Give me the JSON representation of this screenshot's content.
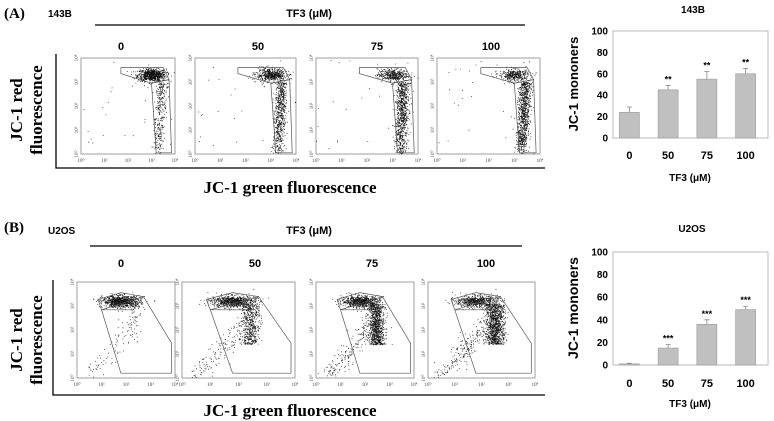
{
  "panels": [
    {
      "label": "(A)",
      "cell_line": "143B",
      "treatment_label": "TF3 (μM)",
      "doses": [
        "0",
        "50",
        "75",
        "100"
      ],
      "y_axis_label": [
        "JC-1 red",
        "fluorescence"
      ],
      "x_axis_label": "JC-1 green fluorescence",
      "axis_ticks": [
        "10⁰",
        "10¹",
        "10²",
        "10³",
        "10⁴"
      ]
    },
    {
      "label": "(B)",
      "cell_line": "U2OS",
      "treatment_label": "TF3 (μM)",
      "doses": [
        "0",
        "50",
        "75",
        "100"
      ],
      "y_axis_label": [
        "JC-1 red",
        "fluorescence"
      ],
      "x_axis_label": "JC-1 green fluorescence",
      "axis_ticks": [
        "10⁰",
        "10¹",
        "10²",
        "10³",
        "10⁴"
      ]
    }
  ],
  "chart_data": [
    {
      "type": "bar",
      "title": "143B",
      "categories": [
        "0",
        "50",
        "75",
        "100"
      ],
      "values": [
        24,
        45,
        55,
        60
      ],
      "errors": [
        5,
        4,
        7,
        5
      ],
      "significance": [
        "",
        "**",
        "**",
        "**"
      ],
      "xlabel": "TF3 (μM)",
      "ylabel": "JC-1 mononers",
      "ylim": [
        0,
        100
      ],
      "yticks": [
        0,
        20,
        40,
        60,
        80,
        100
      ],
      "bar_color": "#c0c0c0",
      "grid": false
    },
    {
      "type": "bar",
      "title": "U2OS",
      "categories": [
        "0",
        "50",
        "75",
        "100"
      ],
      "values": [
        1,
        15,
        36,
        49
      ],
      "errors": [
        0.5,
        3,
        4,
        3
      ],
      "significance": [
        "",
        "***",
        "***",
        "***"
      ],
      "xlabel": "TF3 (μM)",
      "ylabel": "JC-1 mononers",
      "ylim": [
        0,
        100
      ],
      "yticks": [
        0,
        20,
        40,
        60,
        80,
        100
      ],
      "bar_color": "#c0c0c0",
      "grid": false
    }
  ]
}
